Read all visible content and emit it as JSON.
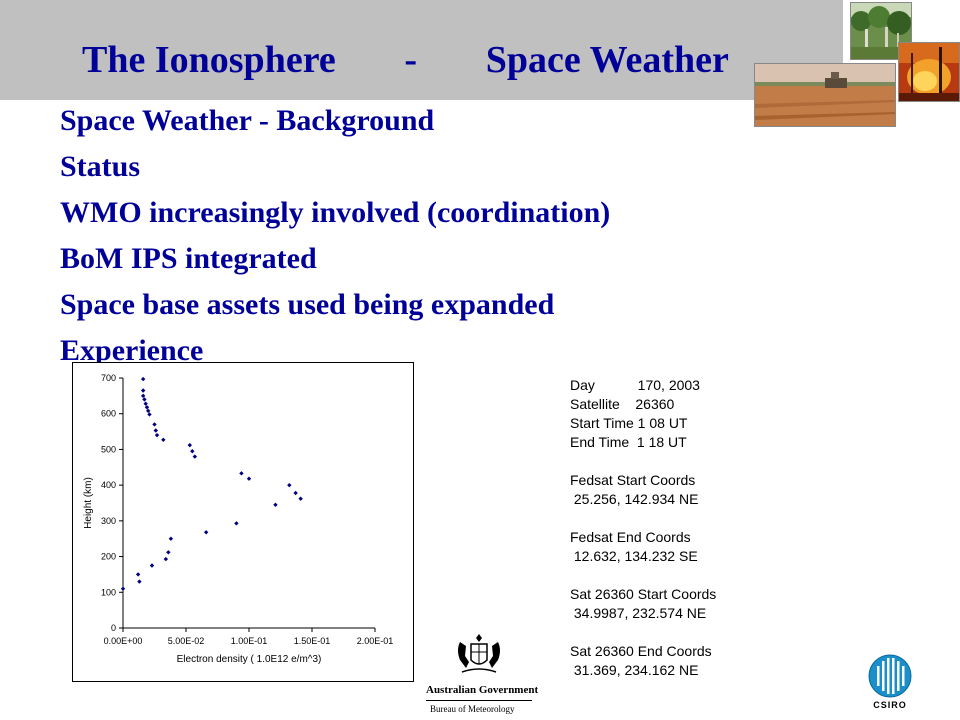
{
  "slide": {
    "title_left": "The Ionosphere",
    "title_sep": "-",
    "title_right": "Space Weather",
    "bullets": [
      "Space Weather - Background",
      "Status",
      "WMO increasingly involved (coordination)",
      "BoM IPS integrated",
      "Space base assets used being expanded",
      "Experience"
    ],
    "accent_color": "#000099",
    "header_color": "#c0c0c0"
  },
  "info": {
    "lines": [
      "Day           170, 2003",
      "Satellite    26360",
      "Start Time 1 08 UT",
      "End Time  1 18 UT",
      "",
      "Fedsat Start Coords",
      " 25.256, 142.934 NE",
      "",
      "Fedsat End Coords",
      " 12.632, 134.232 SE",
      "",
      "Sat 26360 Start Coords",
      " 34.9987, 232.574 NE",
      "",
      "Sat 26360 End Coords",
      " 31.369, 234.162 NE"
    ]
  },
  "logos": {
    "gov_name": "Australian Government",
    "agency": "Bureau of Meteorology",
    "csiro": "CSIRO"
  },
  "chart_data": {
    "type": "scatter",
    "xlabel": "Electron density ( 1.0E12 e/m^3)",
    "ylabel": "Height  (km)",
    "xlim": [
      0,
      0.2
    ],
    "ylim": [
      0,
      700
    ],
    "x_ticks": [
      0,
      0.05,
      0.1,
      0.15,
      0.2
    ],
    "x_tick_labels": [
      "0.00E+00",
      "5.00E-02",
      "1.00E-01",
      "1.50E-01",
      "2.00E-01"
    ],
    "y_ticks": [
      0,
      100,
      200,
      300,
      400,
      500,
      600,
      700
    ],
    "y_tick_labels": [
      "0",
      "100",
      "200",
      "300",
      "400",
      "500",
      "600",
      "700"
    ],
    "grid": false,
    "marker_color": "#000080",
    "points": [
      {
        "x": 0.0,
        "y": 110
      },
      {
        "x": 0.012,
        "y": 150
      },
      {
        "x": 0.013,
        "y": 130
      },
      {
        "x": 0.016,
        "y": 697
      },
      {
        "x": 0.016,
        "y": 665
      },
      {
        "x": 0.016,
        "y": 650
      },
      {
        "x": 0.017,
        "y": 640
      },
      {
        "x": 0.018,
        "y": 628
      },
      {
        "x": 0.019,
        "y": 618
      },
      {
        "x": 0.02,
        "y": 608
      },
      {
        "x": 0.021,
        "y": 598
      },
      {
        "x": 0.023,
        "y": 175
      },
      {
        "x": 0.025,
        "y": 570
      },
      {
        "x": 0.026,
        "y": 553
      },
      {
        "x": 0.027,
        "y": 540
      },
      {
        "x": 0.032,
        "y": 527
      },
      {
        "x": 0.034,
        "y": 193
      },
      {
        "x": 0.036,
        "y": 212
      },
      {
        "x": 0.038,
        "y": 250
      },
      {
        "x": 0.053,
        "y": 512
      },
      {
        "x": 0.055,
        "y": 495
      },
      {
        "x": 0.057,
        "y": 480
      },
      {
        "x": 0.066,
        "y": 268
      },
      {
        "x": 0.09,
        "y": 293
      },
      {
        "x": 0.094,
        "y": 433
      },
      {
        "x": 0.1,
        "y": 418
      },
      {
        "x": 0.121,
        "y": 345
      },
      {
        "x": 0.132,
        "y": 400
      },
      {
        "x": 0.137,
        "y": 378
      },
      {
        "x": 0.141,
        "y": 362
      }
    ]
  }
}
